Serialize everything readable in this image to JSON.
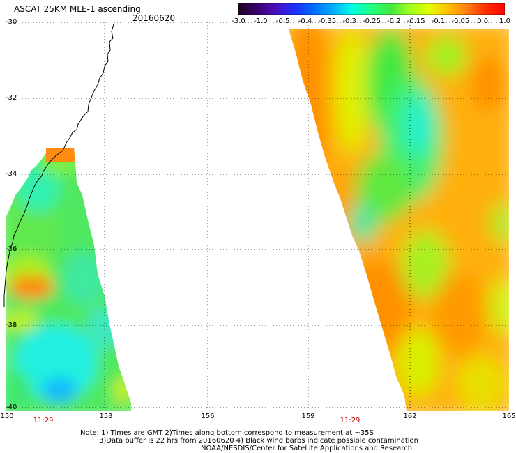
{
  "header": {
    "title": "ASCAT 25KM MLE-1 ascending",
    "date": "20160620"
  },
  "colorbar": {
    "labels": [
      "-3.0",
      "-1.0",
      "-0.5",
      "-0.4",
      "-0.35",
      "-0.3",
      "-0.25",
      "-0.2",
      "-0.15",
      "-0.1",
      "-0.05",
      "0.0",
      "1.0"
    ],
    "colors": [
      "#200020",
      "#3a0070",
      "#4a10c0",
      "#1a30ff",
      "#0070ff",
      "#00b0ff",
      "#00ffe0",
      "#20ff80",
      "#40e840",
      "#a0ff20",
      "#e0ff00",
      "#ffc000",
      "#ff8010",
      "#ff3000",
      "#ff0000"
    ]
  },
  "map": {
    "lat_labels": [
      "-30",
      "-32",
      "-34",
      "-36",
      "-38",
      "-40"
    ],
    "lon_labels": [
      "150",
      "153",
      "156",
      "159",
      "162",
      "165"
    ],
    "times": [
      "11:29",
      "11:29"
    ]
  },
  "footer": {
    "line1": "Note: 1) Times are GMT 2)Times along bottom correspond to measurement at ~35S",
    "line2": "3)Data buffer is 22 hrs from 20160620 4) Black wind barbs indicate possible contamination",
    "line3": "NOAA/NESDIS/Center for Satellite Applications and Research"
  }
}
